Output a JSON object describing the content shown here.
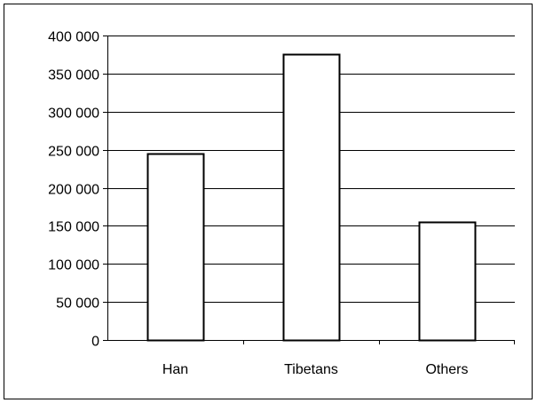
{
  "chart_data": {
    "type": "bar",
    "title": "",
    "xlabel": "",
    "ylabel": "",
    "categories": [
      "Han",
      "Tibetans",
      "Others"
    ],
    "values": [
      245000,
      375000,
      155000
    ],
    "ylim": [
      0,
      400000
    ],
    "yticks": [
      0,
      50000,
      100000,
      150000,
      200000,
      250000,
      300000,
      350000,
      400000
    ],
    "ytick_labels": [
      "0",
      "50 000",
      "100 000",
      "150 000",
      "200 000",
      "250 000",
      "300 000",
      "350 000",
      "400 000"
    ],
    "grid": true,
    "legend": "none",
    "bar_fill": "#ffffff",
    "bar_stroke": "#000000",
    "grid_color": "#000000"
  }
}
